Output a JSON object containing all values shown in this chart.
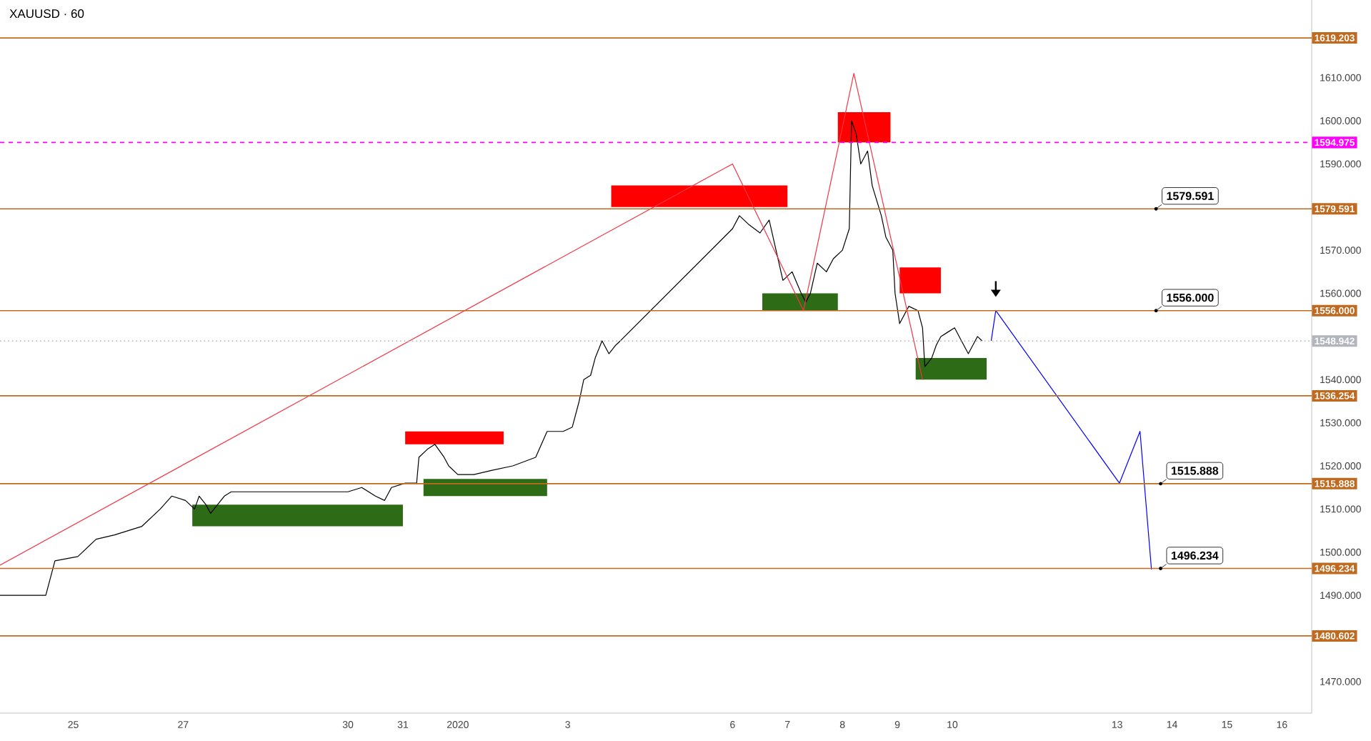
{
  "chart_data": {
    "type": "line",
    "title": "XAUUSD · 60",
    "xlim": [
      "2019-12-23T16:00",
      "2020-01-16T13:00"
    ],
    "ylim": [
      1462.7,
      1628
    ],
    "xticks": [
      {
        "value": "2019-12-25",
        "label": "25"
      },
      {
        "value": "2019-12-27",
        "label": "27"
      },
      {
        "value": "2019-12-30",
        "label": "30"
      },
      {
        "value": "2019-12-31",
        "label": "31"
      },
      {
        "value": "2020-01-01",
        "label": "2020"
      },
      {
        "value": "2020-01-03",
        "label": "3"
      },
      {
        "value": "2020-01-06",
        "label": "6"
      },
      {
        "value": "2020-01-07",
        "label": "7"
      },
      {
        "value": "2020-01-08",
        "label": "8"
      },
      {
        "value": "2020-01-09",
        "label": "9"
      },
      {
        "value": "2020-01-10",
        "label": "10"
      },
      {
        "value": "2020-01-13",
        "label": "13"
      },
      {
        "value": "2020-01-14",
        "label": "14"
      },
      {
        "value": "2020-01-15",
        "label": "15"
      },
      {
        "value": "2020-01-16",
        "label": "16"
      }
    ],
    "yticks": [
      {
        "value": 1470,
        "label": "1470.000"
      },
      {
        "value": 1490,
        "label": "1490.000"
      },
      {
        "value": 1500,
        "label": "1500.000"
      },
      {
        "value": 1510,
        "label": "1510.000"
      },
      {
        "value": 1520,
        "label": "1520.000"
      },
      {
        "value": 1530,
        "label": "1530.000"
      },
      {
        "value": 1540,
        "label": "1540.000"
      },
      {
        "value": 1560,
        "label": "1560.000"
      },
      {
        "value": 1570,
        "label": "1570.000"
      },
      {
        "value": 1590,
        "label": "1590.000"
      },
      {
        "value": 1600,
        "label": "1600.000"
      },
      {
        "value": 1610,
        "label": "1610.000"
      }
    ],
    "series": [
      {
        "type": "line",
        "color": "#ff0000",
        "x": [
          "2020-01-03T19:00",
          "2020-01-07T00:00"
        ],
        "values": [
          null,
          null
        ],
        "lower": [
          1580,
          1580
        ],
        "upper": [
          1585,
          1585
        ]
      },
      {
        "type": "line",
        "color": "#ff0000",
        "x": [
          "2020-01-07T22:00",
          "2020-01-08T21:00"
        ],
        "values": [
          null,
          null
        ],
        "lower": [
          1595,
          1595
        ],
        "upper": [
          1602,
          1602
        ]
      },
      {
        "type": "line",
        "color": "#ff0000",
        "x": [
          "2019-12-31T01:00",
          "2020-01-01T20:00"
        ],
        "values": [
          null,
          null
        ],
        "lower": [
          1525,
          1525
        ],
        "upper": [
          1528,
          1528
        ]
      },
      {
        "type": "line",
        "color": "#2e6b16",
        "x": [
          "2020-01-06T13:00",
          "2020-01-07T22:00"
        ],
        "values": [
          null,
          null
        ],
        "lower": [
          1556,
          1556
        ],
        "upper": [
          1560,
          1560
        ]
      },
      {
        "type": "line",
        "color": "#2e6b16",
        "x": [
          "2020-01-09T08:00",
          "2020-01-10T15:00"
        ],
        "values": [
          null,
          null
        ],
        "lower": [
          1540,
          1540
        ],
        "upper": [
          1545,
          1545
        ]
      },
      {
        "type": "line",
        "color": "#2e6b16",
        "x": [
          "2019-12-31T09:00",
          "2020-01-02T15:00"
        ],
        "values": [
          null,
          null
        ],
        "lower": [
          1513,
          1513
        ],
        "upper": [
          1517,
          1517
        ]
      },
      {
        "type": "line",
        "color": "#2e6b16",
        "x": [
          "2019-12-27T04:00",
          "2019-12-31T00:00"
        ],
        "values": [
          null,
          null
        ],
        "lower": [
          1506,
          1506
        ],
        "upper": [
          1511,
          1511
        ]
      },
      {
        "type": "line",
        "color": "#ff0000",
        "x": [
          "2020-01-09T01:00",
          "2020-01-09T19:00"
        ],
        "values": [
          null,
          null
        ],
        "lower": [
          1560,
          1560
        ],
        "upper": [
          1566,
          1566
        ]
      },
      {
        "color": "#000000",
        "x": [
          "2019-12-23T16:00",
          "2019-12-24T03:00",
          "2019-12-24T12:00",
          "2019-12-24T16:00",
          "2019-12-25T02:00",
          "2019-12-25T10:00",
          "2019-12-25T18:00",
          "2019-12-26T06:00",
          "2019-12-26T14:00",
          "2019-12-26T19:00",
          "2019-12-27T01:00",
          "2019-12-27T05:00",
          "2019-12-27T07:00",
          "2019-12-27T10:00",
          "2019-12-27T12:00",
          "2019-12-27T15:00",
          "2019-12-27T18:00",
          "2019-12-27T21:00",
          "2019-12-30T00:00",
          "2019-12-30T06:00",
          "2019-12-30T12:00",
          "2019-12-30T16:00",
          "2019-12-30T19:00",
          "2019-12-31T01:00",
          "2019-12-31T06:00",
          "2019-12-31T07:00",
          "2019-12-31T11:00",
          "2019-12-31T14:00",
          "2019-12-31T18:00",
          "2019-12-31T20:00",
          "2020-01-01T00:00",
          "2020-01-01T07:00",
          "2020-01-01T15:00",
          "2020-01-02T00:00",
          "2020-01-02T10:00",
          "2020-01-02T15:00",
          "2020-01-02T22:00",
          "2020-01-03T02:00",
          "2020-01-03T05:00",
          "2020-01-03T07:00",
          "2020-01-03T10:00",
          "2020-01-03T12:00",
          "2020-01-03T15:00",
          "2020-01-03T18:00",
          "2020-01-03T21:00",
          "2020-01-03T23:00",
          "2020-01-06T00:00",
          "2020-01-06T03:00",
          "2020-01-06T07:00",
          "2020-01-06T12:00",
          "2020-01-06T16:00",
          "2020-01-06T19:00",
          "2020-01-06T22:00",
          "2020-01-07T02:00",
          "2020-01-07T06:00",
          "2020-01-07T08:00",
          "2020-01-07T10:00",
          "2020-01-07T13:00",
          "2020-01-07T17:00",
          "2020-01-07T20:00",
          "2020-01-08T00:00",
          "2020-01-08T03:00",
          "2020-01-08T04:00",
          "2020-01-08T06:00",
          "2020-01-08T08:00",
          "2020-01-08T11:00",
          "2020-01-08T13:00",
          "2020-01-08T17:00",
          "2020-01-08T19:00",
          "2020-01-08T22:00",
          "2020-01-08T23:00",
          "2020-01-09T01:00",
          "2020-01-09T05:00",
          "2020-01-09T09:00",
          "2020-01-09T11:00",
          "2020-01-09T12:00",
          "2020-01-09T15:00",
          "2020-01-09T17:00",
          "2020-01-09T19:00",
          "2020-01-09T22:00",
          "2020-01-10T01:00",
          "2020-01-10T04:00",
          "2020-01-10T07:00",
          "2020-01-10T11:00",
          "2020-01-10T13:00"
        ],
        "values": [
          1490,
          1490,
          1490,
          1498,
          1499,
          1503,
          1504,
          1506,
          1510,
          1513,
          1512,
          1510,
          1513,
          1511,
          1509,
          1511,
          1513,
          1514,
          1514,
          1515,
          1513,
          1512,
          1515,
          1516,
          1516,
          1522,
          1524,
          1525,
          1522,
          1520,
          1518,
          1518,
          1519,
          1520,
          1522,
          1528,
          1528,
          1529,
          1535,
          1540,
          1541,
          1545,
          1549,
          1546,
          1548,
          1549,
          1575,
          1578,
          1576,
          1574,
          1577,
          1570,
          1563,
          1565,
          1560,
          1558,
          1560,
          1567,
          1565,
          1568,
          1570,
          1575,
          1600,
          1597,
          1590,
          1593,
          1585,
          1578,
          1573,
          1570,
          1560,
          1553,
          1557,
          1556,
          1552,
          1543,
          1545,
          1548,
          1550,
          1551,
          1552,
          1549,
          1546,
          1550,
          1549
        ]
      },
      {
        "type": "line",
        "color": "#f23645",
        "x": [
          "2019-12-23T16:00",
          "2020-01-06T00:00",
          "2020-01-07T07:00",
          "2020-01-08T05:00",
          "2020-01-09T11:00"
        ],
        "values": [
          1497,
          1590,
          1556,
          1611,
          1540
        ]
      },
      {
        "type": "line",
        "color": "#0000ff",
        "x": [
          "2020-01-10T17:00",
          "2020-01-10T19:00",
          "2020-01-13T01:00",
          "2020-01-13T10:00",
          "2020-01-13T15:00"
        ],
        "values": [
          1549,
          1556,
          1516,
          1528,
          1496
        ]
      }
    ],
    "ref_lines": [
      {
        "axis": "y",
        "value": 1619.203,
        "label": "1619.203",
        "color": "#bf6a1f"
      },
      {
        "axis": "y",
        "value": 1594.975,
        "label": "1594.975",
        "color": "#ff00ff",
        "line_style": "dashed"
      },
      {
        "axis": "y",
        "value": 1579.591,
        "label": "1579.591",
        "color": "#bf6a1f"
      },
      {
        "axis": "y",
        "value": 1556.0,
        "label": "1556.000",
        "color": "#bf6a1f"
      },
      {
        "axis": "y",
        "value": 1548.942,
        "label": "1548.942",
        "color": "#b2b5be",
        "line_style": "dotted"
      },
      {
        "axis": "y",
        "value": 1536.254,
        "label": "1536.254",
        "color": "#bf6a1f"
      },
      {
        "axis": "y",
        "value": 1515.888,
        "label": "1515.888",
        "color": "#bf6a1f"
      },
      {
        "axis": "y",
        "value": 1496.234,
        "label": "1496.234",
        "color": "#bf6a1f"
      },
      {
        "axis": "y",
        "value": 1480.602,
        "label": "1480.602",
        "color": "#bf6a1f"
      }
    ],
    "annotations": [
      {
        "text": "1579.591",
        "x": "2020-01-13T17:00",
        "y": 1579.591
      },
      {
        "text": "1556.000",
        "x": "2020-01-13T17:00",
        "y": 1556.0
      },
      {
        "text": "1515.888",
        "x": "2020-01-13T19:00",
        "y": 1515.888
      },
      {
        "text": "1496.234",
        "x": "2020-01-13T19:00",
        "y": 1496.234
      }
    ]
  }
}
